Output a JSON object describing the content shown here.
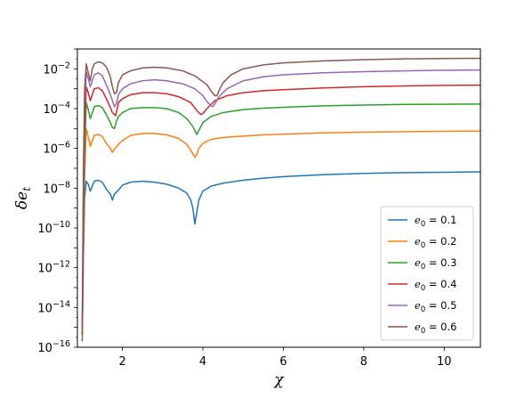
{
  "chart_data": {
    "type": "line",
    "title": "",
    "xlabel": "χ",
    "ylabel": "δe_t",
    "yscale": "log",
    "xlim": [
      0.88,
      10.9
    ],
    "ylim": [
      1e-16,
      0.1
    ],
    "xticks": [
      2,
      4,
      6,
      8,
      10
    ],
    "xtick_labels": [
      "2",
      "4",
      "6",
      "8",
      "10"
    ],
    "yticks": [
      -16,
      -14,
      -12,
      -10,
      -8,
      -6,
      -4,
      -2
    ],
    "grid": false,
    "legend_position": "lower-right",
    "series": [
      {
        "name": "e₀ = 0.1",
        "e0": "0.1",
        "color": "#1f77b4",
        "x": [
          1.0,
          1.03,
          1.06,
          1.1,
          1.15,
          1.2,
          1.3,
          1.4,
          1.5,
          1.6,
          1.7,
          1.75,
          1.8,
          1.9,
          2.0,
          2.2,
          2.5,
          2.8,
          3.1,
          3.4,
          3.6,
          3.7,
          3.75,
          3.8,
          3.85,
          3.9,
          4.0,
          4.2,
          4.5,
          5.0,
          5.5,
          6.0,
          7.0,
          8.0,
          9.0,
          10.0,
          10.9
        ],
        "y": [
          -15.7,
          -11.5,
          -8.5,
          -7.65,
          -7.8,
          -8.15,
          -7.65,
          -7.6,
          -7.7,
          -8.05,
          -8.3,
          -8.6,
          -8.3,
          -8.1,
          -7.85,
          -7.7,
          -7.65,
          -7.7,
          -7.8,
          -8.0,
          -8.25,
          -8.6,
          -9.0,
          -9.8,
          -9.2,
          -8.6,
          -8.15,
          -7.9,
          -7.75,
          -7.6,
          -7.5,
          -7.42,
          -7.32,
          -7.26,
          -7.22,
          -7.2,
          -7.18
        ]
      },
      {
        "name": "e₀ = 0.2",
        "e0": "0.2",
        "color": "#ff7f0e",
        "x": [
          1.0,
          1.03,
          1.06,
          1.1,
          1.15,
          1.2,
          1.3,
          1.4,
          1.5,
          1.6,
          1.7,
          1.75,
          1.8,
          1.9,
          2.0,
          2.2,
          2.5,
          2.8,
          3.1,
          3.4,
          3.6,
          3.7,
          3.8,
          3.85,
          3.9,
          4.0,
          4.2,
          4.5,
          5.0,
          5.5,
          6.0,
          7.0,
          8.0,
          9.0,
          10.0,
          10.9
        ],
        "y": [
          -15.5,
          -11.0,
          -7.3,
          -5.0,
          -5.4,
          -5.9,
          -5.35,
          -5.3,
          -5.4,
          -5.75,
          -6.0,
          -6.2,
          -6.05,
          -5.8,
          -5.6,
          -5.35,
          -5.25,
          -5.25,
          -5.32,
          -5.5,
          -5.8,
          -6.1,
          -6.45,
          -6.3,
          -6.0,
          -5.75,
          -5.55,
          -5.45,
          -5.38,
          -5.32,
          -5.28,
          -5.22,
          -5.18,
          -5.16,
          -5.14,
          -5.13
        ]
      },
      {
        "name": "e₀ = 0.3",
        "e0": "0.3",
        "color": "#2ca02c",
        "x": [
          1.0,
          1.03,
          1.06,
          1.1,
          1.15,
          1.2,
          1.3,
          1.4,
          1.5,
          1.6,
          1.7,
          1.75,
          1.8,
          1.85,
          1.9,
          2.0,
          2.2,
          2.5,
          2.8,
          3.1,
          3.4,
          3.6,
          3.75,
          3.85,
          3.9,
          4.0,
          4.2,
          4.5,
          5.0,
          5.5,
          6.0,
          7.0,
          8.0,
          9.0,
          10.0,
          10.9
        ],
        "y": [
          -15.4,
          -10.2,
          -6.2,
          -3.7,
          -4.05,
          -4.5,
          -3.9,
          -3.85,
          -3.95,
          -4.3,
          -4.7,
          -4.95,
          -5.0,
          -4.65,
          -4.4,
          -4.2,
          -4.0,
          -3.95,
          -3.95,
          -4.0,
          -4.2,
          -4.5,
          -4.9,
          -5.3,
          -5.1,
          -4.7,
          -4.4,
          -4.2,
          -4.05,
          -3.98,
          -3.93,
          -3.86,
          -3.82,
          -3.79,
          -3.78,
          -3.77
        ]
      },
      {
        "name": "e₀ = 0.4",
        "e0": "0.4",
        "color": "#d62728",
        "x": [
          1.0,
          1.03,
          1.06,
          1.1,
          1.15,
          1.2,
          1.3,
          1.4,
          1.5,
          1.6,
          1.7,
          1.75,
          1.8,
          1.83,
          1.87,
          1.9,
          2.0,
          2.2,
          2.5,
          2.8,
          3.1,
          3.4,
          3.7,
          3.85,
          3.95,
          4.0,
          4.1,
          4.3,
          4.6,
          5.0,
          5.5,
          6.0,
          7.0,
          8.0,
          9.0,
          10.0,
          10.9
        ],
        "y": [
          -15.3,
          -9.0,
          -5.0,
          -2.9,
          -3.2,
          -3.6,
          -3.0,
          -2.95,
          -3.1,
          -3.5,
          -3.95,
          -4.2,
          -4.3,
          -4.35,
          -4.0,
          -3.7,
          -3.5,
          -3.3,
          -3.2,
          -3.2,
          -3.25,
          -3.4,
          -3.7,
          -4.1,
          -4.3,
          -4.25,
          -4.0,
          -3.6,
          -3.35,
          -3.2,
          -3.1,
          -3.05,
          -2.96,
          -2.9,
          -2.86,
          -2.83,
          -2.82
        ]
      },
      {
        "name": "e₀ = 0.5",
        "e0": "0.5",
        "color": "#9467bd",
        "x": [
          1.0,
          1.03,
          1.06,
          1.1,
          1.15,
          1.2,
          1.3,
          1.4,
          1.5,
          1.6,
          1.7,
          1.75,
          1.8,
          1.85,
          1.9,
          2.0,
          2.2,
          2.5,
          2.8,
          3.1,
          3.5,
          3.8,
          4.0,
          4.1,
          4.2,
          4.25,
          4.3,
          4.4,
          4.6,
          5.0,
          5.5,
          6.0,
          7.0,
          8.0,
          9.0,
          10.0,
          10.9
        ],
        "y": [
          -15.2,
          -8.0,
          -4.0,
          -2.15,
          -2.5,
          -2.9,
          -2.3,
          -2.2,
          -2.35,
          -2.8,
          -3.3,
          -3.6,
          -3.9,
          -3.75,
          -3.3,
          -3.0,
          -2.75,
          -2.6,
          -2.55,
          -2.6,
          -2.75,
          -3.0,
          -3.35,
          -3.65,
          -3.85,
          -3.9,
          -3.75,
          -3.4,
          -3.0,
          -2.6,
          -2.4,
          -2.3,
          -2.2,
          -2.14,
          -2.1,
          -2.07,
          -2.06
        ]
      },
      {
        "name": "e₀ = 0.6",
        "e0": "0.6",
        "color": "#8c564b",
        "x": [
          1.0,
          1.03,
          1.06,
          1.1,
          1.15,
          1.2,
          1.25,
          1.3,
          1.4,
          1.5,
          1.6,
          1.7,
          1.75,
          1.8,
          1.85,
          1.9,
          2.0,
          2.2,
          2.5,
          2.8,
          3.1,
          3.5,
          3.8,
          4.1,
          4.2,
          4.3,
          4.35,
          4.4,
          4.5,
          4.7,
          5.0,
          5.5,
          6.0,
          7.0,
          8.0,
          9.0,
          10.0,
          10.9
        ],
        "y": [
          -15.1,
          -7.0,
          -3.0,
          -1.75,
          -2.2,
          -2.6,
          -2.0,
          -1.75,
          -1.65,
          -1.7,
          -1.9,
          -2.4,
          -2.9,
          -3.25,
          -3.2,
          -2.7,
          -2.3,
          -2.1,
          -1.95,
          -1.92,
          -1.95,
          -2.1,
          -2.35,
          -2.8,
          -3.1,
          -3.35,
          -3.35,
          -3.1,
          -2.7,
          -2.3,
          -2.0,
          -1.8,
          -1.7,
          -1.6,
          -1.54,
          -1.5,
          -1.48,
          -1.47
        ]
      }
    ]
  }
}
